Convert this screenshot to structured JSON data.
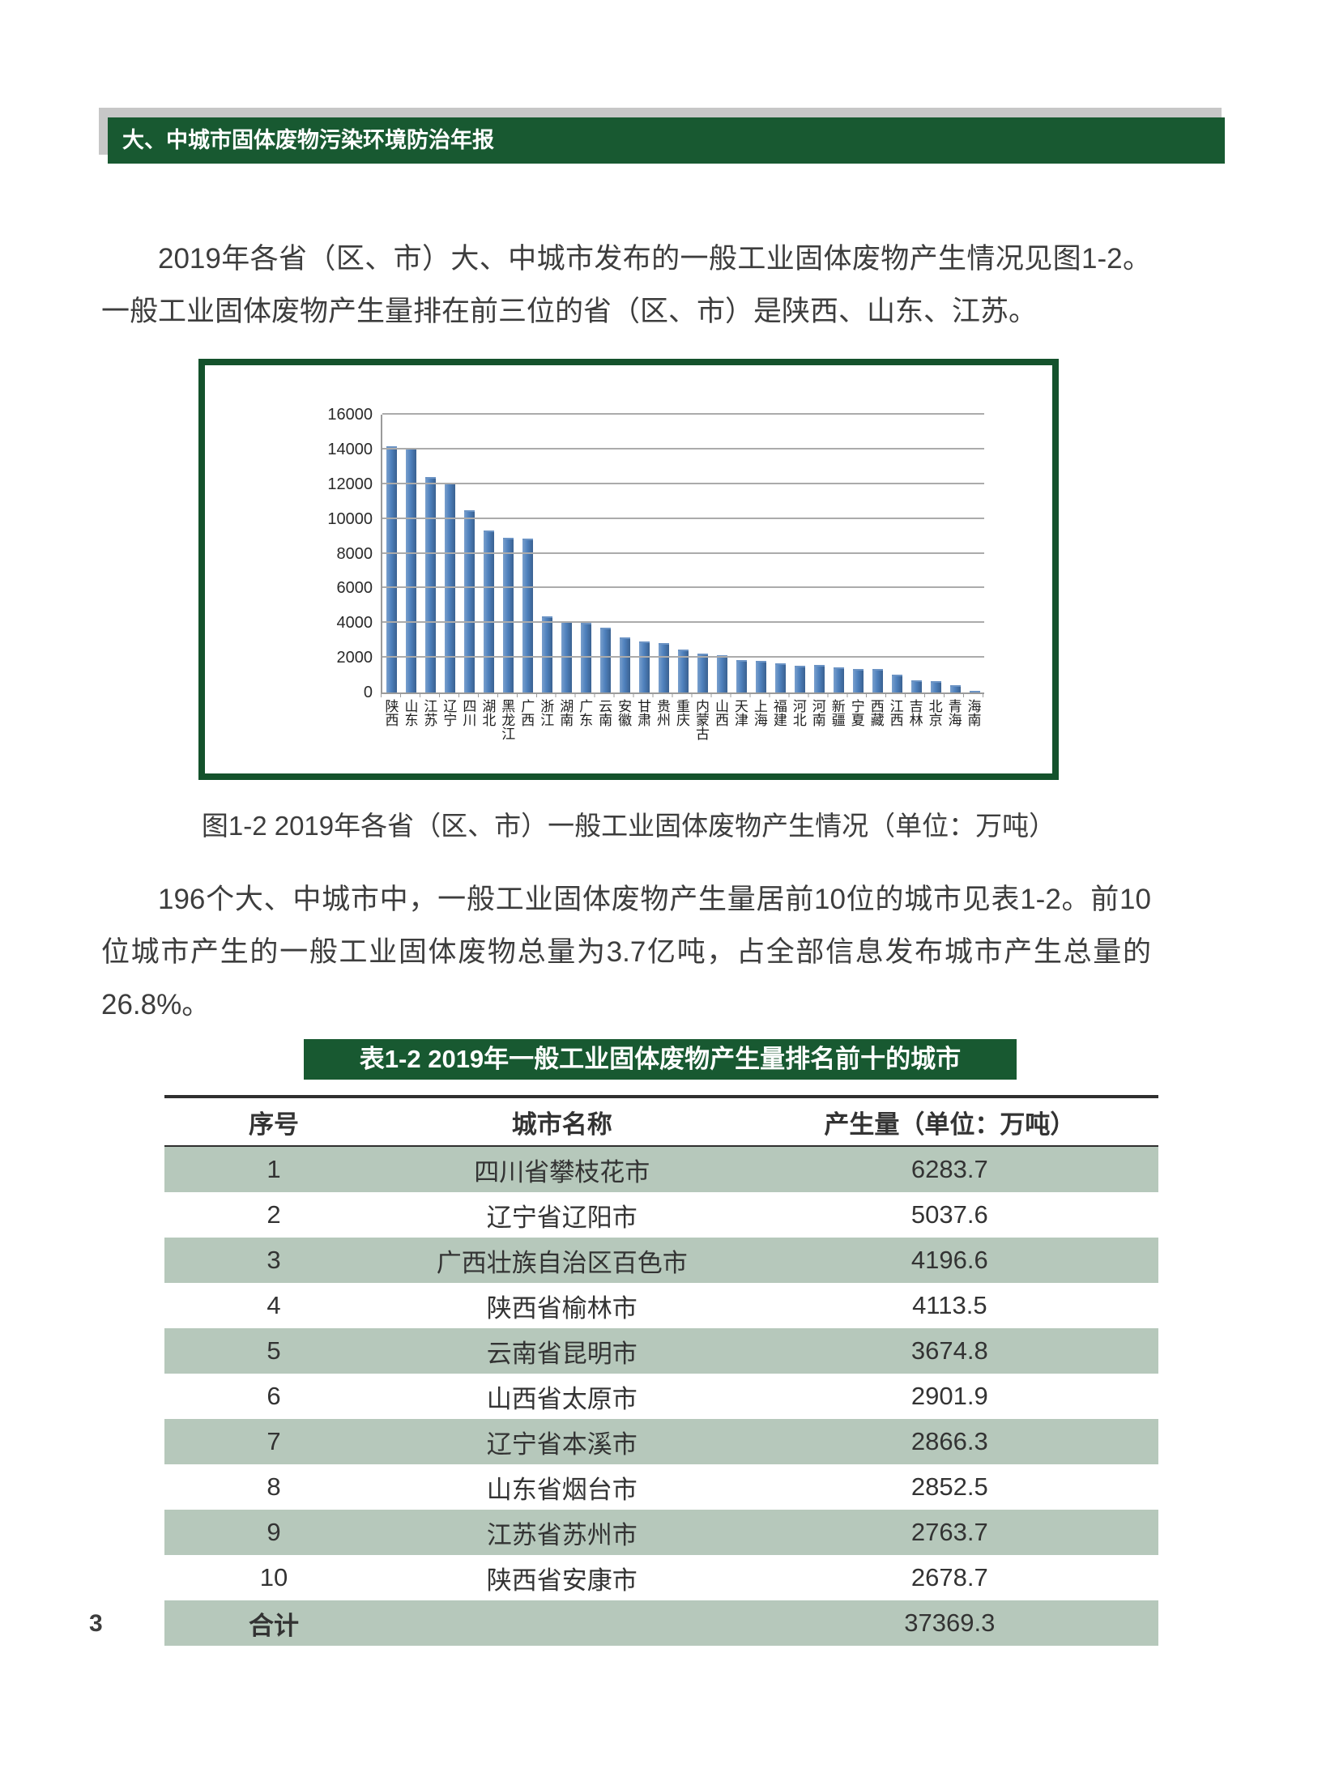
{
  "header": {
    "title": "大、中城市固体废物污染环境防治年报"
  },
  "paragraphs": {
    "p1": "2019年各省（区、市）大、中城市发布的一般工业固体废物产生情况见图1-2。一般工业固体废物产生量排在前三位的省（区、市）是陕西、山东、江苏。",
    "p2": "196个大、中城市中，一般工业固体废物产生量居前10位的城市见表1-2。前10位城市产生的一般工业固体废物总量为3.7亿吨，占全部信息发布城市产生总量的26.8%。"
  },
  "figure": {
    "caption": "图1-2 2019年各省（区、市）一般工业固体废物产生情况（单位：万吨）"
  },
  "chart_data": {
    "type": "bar",
    "title": "",
    "xlabel": "",
    "ylabel": "",
    "categories": [
      "陕西",
      "山东",
      "江苏",
      "辽宁",
      "四川",
      "湖北",
      "黑龙江",
      "广西",
      "浙江",
      "湖南",
      "广东",
      "云南",
      "安徽",
      "甘肃",
      "贵州",
      "重庆",
      "内蒙古",
      "山西",
      "天津",
      "上海",
      "福建",
      "河北",
      "河南",
      "新疆",
      "宁夏",
      "西藏",
      "江西",
      "吉林",
      "北京",
      "青海",
      "海南"
    ],
    "values": [
      14200,
      14100,
      12400,
      12100,
      10500,
      9350,
      8900,
      8850,
      4400,
      4100,
      4000,
      3750,
      3150,
      2950,
      2850,
      2450,
      2250,
      2150,
      1850,
      1830,
      1700,
      1560,
      1570,
      1450,
      1340,
      1360,
      1040,
      700,
      670,
      430,
      60
    ],
    "ylim": [
      0,
      16000
    ],
    "yticks": [
      0,
      2000,
      4000,
      6000,
      8000,
      10000,
      12000,
      14000,
      16000
    ],
    "grid": true,
    "legend_position": "none",
    "bar_color": "#4f81bd",
    "unit": "万吨"
  },
  "table": {
    "title": "表1-2 2019年一般工业固体废物产生量排名前十的城市",
    "columns": [
      "序号",
      "城市名称",
      "产生量（单位：万吨）"
    ],
    "rows": [
      [
        "1",
        "四川省攀枝花市",
        "6283.7"
      ],
      [
        "2",
        "辽宁省辽阳市",
        "5037.6"
      ],
      [
        "3",
        "广西壮族自治区百色市",
        "4196.6"
      ],
      [
        "4",
        "陕西省榆林市",
        "4113.5"
      ],
      [
        "5",
        "云南省昆明市",
        "3674.8"
      ],
      [
        "6",
        "山西省太原市",
        "2901.9"
      ],
      [
        "7",
        "辽宁省本溪市",
        "2866.3"
      ],
      [
        "8",
        "山东省烟台市",
        "2852.5"
      ],
      [
        "9",
        "江苏省苏州市",
        "2763.7"
      ],
      [
        "10",
        "陕西省安康市",
        "2678.7"
      ]
    ],
    "total_row": {
      "label": "合计",
      "value": "37369.3"
    }
  },
  "page_number": "3",
  "colors": {
    "brand_green": "#185931",
    "row_shade": "#b6c8bb",
    "bar_blue": "#4f81bd",
    "header_shadow_gray": "#c7c7c7"
  }
}
